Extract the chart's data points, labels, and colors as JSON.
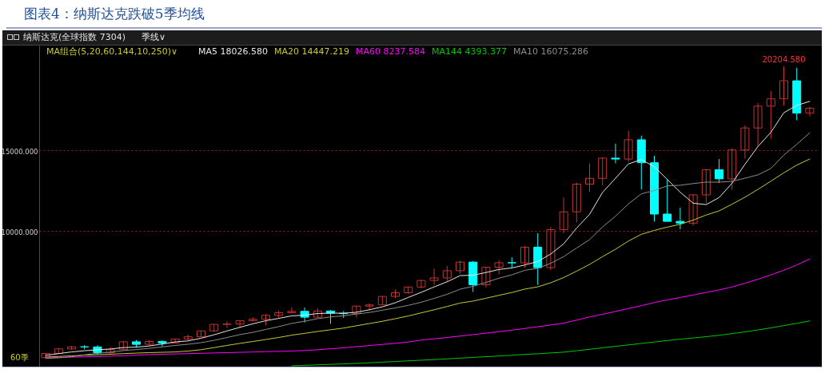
{
  "chart_data": {
    "type": "candlestick",
    "title": "图表4：纳斯达克跌破5季均线",
    "legend_title": "MA组合(5,20,60,144,10,250)∨",
    "categories": [
      null,
      null,
      null,
      null,
      null,
      null,
      null,
      null,
      null,
      null,
      null,
      null,
      null,
      null,
      null,
      null,
      null,
      null,
      null,
      null,
      null,
      null,
      null,
      null,
      null,
      null,
      null,
      null,
      null,
      null,
      null,
      null,
      null,
      null,
      null,
      null,
      null,
      null,
      null,
      null,
      null,
      null,
      null,
      null,
      null,
      null,
      null,
      null,
      null,
      null,
      null,
      null,
      null,
      null,
      null,
      null,
      null,
      null,
      null,
      null
    ],
    "ohlc": [
      [
        2109,
        2389,
        2061,
        2369
      ],
      [
        2369,
        2676,
        2344,
        2653
      ],
      [
        2653,
        2840,
        2603,
        2781
      ],
      [
        2781,
        2888,
        2621,
        2774
      ],
      [
        2774,
        2887,
        2299,
        2415
      ],
      [
        2415,
        2753,
        2335,
        2605
      ],
      [
        2605,
        3134,
        2602,
        3092
      ],
      [
        3092,
        3196,
        2726,
        2935
      ],
      [
        2935,
        3196,
        2810,
        3116
      ],
      [
        3116,
        3183,
        2810,
        3020
      ],
      [
        3020,
        3270,
        2999,
        3268
      ],
      [
        3268,
        3533,
        3154,
        3403
      ],
      [
        3403,
        3800,
        3370,
        3771
      ],
      [
        3771,
        4177,
        3703,
        4177
      ],
      [
        4177,
        4372,
        3946,
        4199
      ],
      [
        4199,
        4409,
        3947,
        4408
      ],
      [
        4408,
        4611,
        4354,
        4493
      ],
      [
        4493,
        4814,
        4117,
        4736
      ],
      [
        4736,
        5043,
        4560,
        4901
      ],
      [
        4901,
        5232,
        4855,
        4987
      ],
      [
        4987,
        5232,
        4292,
        4620
      ],
      [
        4620,
        5176,
        4567,
        5007
      ],
      [
        5007,
        5070,
        4210,
        4870
      ],
      [
        4870,
        5000,
        4574,
        4843
      ],
      [
        4843,
        5343,
        4594,
        5312
      ],
      [
        5312,
        5487,
        5034,
        5383
      ],
      [
        5383,
        5929,
        5371,
        5912
      ],
      [
        5912,
        6341,
        5805,
        6140
      ],
      [
        6140,
        6532,
        6081,
        6496
      ],
      [
        6496,
        6945,
        6414,
        6903
      ],
      [
        6903,
        7637,
        6630,
        7063
      ],
      [
        7063,
        7807,
        6805,
        7510
      ],
      [
        7510,
        8133,
        7323,
        8046
      ],
      [
        8046,
        8107,
        6190,
        6635
      ],
      [
        6635,
        7740,
        6457,
        7729
      ],
      [
        7729,
        8176,
        7292,
        8006
      ],
      [
        8006,
        8339,
        7662,
        7999
      ],
      [
        7999,
        9052,
        7700,
        8973
      ],
      [
        8973,
        9838,
        6631,
        7700
      ],
      [
        7700,
        10221,
        7550,
        10059
      ],
      [
        10059,
        12074,
        9838,
        11168
      ],
      [
        11168,
        12973,
        10519,
        12888
      ],
      [
        12888,
        14175,
        12397,
        13247
      ],
      [
        13247,
        14572,
        12806,
        14504
      ],
      [
        14504,
        15403,
        14181,
        14448
      ],
      [
        14448,
        16212,
        14287,
        15645
      ],
      [
        15645,
        15901,
        12555,
        14221
      ],
      [
        14221,
        14647,
        10565,
        11029
      ],
      [
        11029,
        13181,
        10565,
        10576
      ],
      [
        10576,
        11432,
        10089,
        10466
      ],
      [
        10466,
        12270,
        10305,
        12222
      ],
      [
        12222,
        13823,
        11695,
        13788
      ],
      [
        13788,
        14446,
        12963,
        13219
      ],
      [
        13219,
        15111,
        12544,
        15011
      ],
      [
        15011,
        16538,
        14477,
        16379
      ],
      [
        16379,
        17936,
        15223,
        17733
      ],
      [
        17733,
        18671,
        15708,
        18189
      ],
      [
        18189,
        20204.58,
        17755,
        19311
      ],
      [
        19311,
        20119,
        16854,
        17299
      ],
      [
        17299,
        17700,
        17100,
        17601
      ]
    ],
    "colors": [
      "#c83232",
      "#c83232",
      "#c83232",
      "#00ffff",
      "#00ffff",
      "#c83232",
      "#c83232",
      "#00ffff",
      "#c83232",
      "#00ffff",
      "#c83232",
      "#c83232",
      "#c83232",
      "#c83232",
      "#c83232",
      "#c83232",
      "#c83232",
      "#c83232",
      "#c83232",
      "#c83232",
      "#00ffff",
      "#c83232",
      "#00ffff",
      "#00ffff",
      "#c83232",
      "#c83232",
      "#c83232",
      "#c83232",
      "#c83232",
      "#c83232",
      "#c83232",
      "#c83232",
      "#c83232",
      "#00ffff",
      "#c83232",
      "#c83232",
      "#00ffff",
      "#c83232",
      "#00ffff",
      "#c83232",
      "#c83232",
      "#c83232",
      "#c83232",
      "#c83232",
      "#00ffff",
      "#c83232",
      "#00ffff",
      "#00ffff",
      "#00ffff",
      "#00ffff",
      "#c83232",
      "#c83232",
      "#00ffff",
      "#c83232",
      "#c83232",
      "#c83232",
      "#c83232",
      "#c83232",
      "#00ffff",
      "#c83232"
    ],
    "series": [
      {
        "name": "MA5 18026.580",
        "type": "line",
        "color": "#e6e6e6",
        "values": [
          2253,
          2360,
          2462,
          2537,
          2598,
          2646,
          2733,
          2764,
          2833,
          2954,
          3086,
          3148,
          3316,
          3528,
          3764,
          3992,
          4210,
          4403,
          4547,
          4705,
          4747,
          4850,
          4877,
          4865,
          4930,
          5083,
          5264,
          5518,
          5849,
          6167,
          6503,
          6822,
          7204,
          7231,
          7397,
          7585,
          7683,
          7868,
          8081,
          8547,
          9180,
          10158,
          11012,
          12373,
          13251,
          14146,
          14413,
          13969,
          13184,
          12387,
          11703,
          11616,
          12054,
          12941,
          14124,
          15226,
          16106,
          17325,
          17782,
          18030
        ]
      },
      {
        "name": "MA20 14447.219",
        "type": "line",
        "color": "#c8c832",
        "values": [
          2150,
          2180,
          2220,
          2260,
          2290,
          2320,
          2360,
          2390,
          2420,
          2440,
          2463,
          2519,
          2602,
          2733,
          2866,
          2995,
          3113,
          3237,
          3362,
          3506,
          3618,
          3736,
          3840,
          3944,
          4089,
          4227,
          4368,
          4529,
          4698,
          4892,
          5082,
          5287,
          5501,
          5623,
          5800,
          5980,
          6155,
          6367,
          6507,
          6761,
          7088,
          7482,
          7901,
          8384,
          8841,
          9354,
          9770,
          10014,
          10218,
          10396,
          10654,
          10968,
          11226,
          11645,
          12078,
          12564,
          13074,
          13591,
          14071,
          14450
        ]
      },
      {
        "name": "MA60 8237.584",
        "type": "line",
        "color": "#ff00ff",
        "values": [
          2100,
          2120,
          2140,
          2160,
          2180,
          2200,
          2230,
          2260,
          2300,
          2320,
          2340,
          2360,
          2380,
          2400,
          2420,
          2440,
          2460,
          2480,
          2500,
          2520,
          2550,
          2600,
          2660,
          2720,
          2790,
          2860,
          2930,
          3000,
          3080,
          3200,
          3280,
          3360,
          3450,
          3540,
          3630,
          3720,
          3820,
          3920,
          4030,
          4140,
          4250,
          4440,
          4640,
          4800,
          4980,
          5160,
          5340,
          5530,
          5700,
          5850,
          6000,
          6160,
          6320,
          6500,
          6730,
          6980,
          7250,
          7540,
          7870,
          8240
        ]
      },
      {
        "name": "MA144 4393.377",
        "type": "line",
        "color": "#00c800",
        "values": [
          null,
          null,
          null,
          null,
          null,
          null,
          null,
          null,
          null,
          null,
          null,
          null,
          null,
          null,
          null,
          null,
          null,
          null,
          null,
          1600,
          1630,
          1660,
          1690,
          1720,
          1750,
          1790,
          1830,
          1870,
          1910,
          1950,
          1990,
          2030,
          2080,
          2120,
          2170,
          2210,
          2260,
          2310,
          2350,
          2400,
          2450,
          2540,
          2630,
          2720,
          2810,
          2900,
          2990,
          3080,
          3170,
          3260,
          3330,
          3410,
          3500,
          3600,
          3710,
          3830,
          3960,
          4100,
          4240,
          4390
        ]
      },
      {
        "name": "MA10 16075.286",
        "type": "line",
        "color": "#8c8c8c",
        "values": [
          2059,
          2096,
          2164,
          2284,
          2373,
          2450,
          2547,
          2613,
          2685,
          2776,
          2866,
          2941,
          3040,
          3181,
          3359,
          3539,
          3679,
          3860,
          4038,
          4235,
          4370,
          4530,
          4640,
          4706,
          4818,
          4915,
          5057,
          5198,
          5357,
          5549,
          5793,
          6043,
          6361,
          6540,
          6782,
          7044,
          7253,
          7536,
          7656,
          7972,
          8383,
          8921,
          9440,
          10227,
          10899,
          11663,
          12286,
          12491,
          12779,
          12819,
          12925,
          13015,
          13012,
          13063,
          13256,
          13465,
          13861,
          14690,
          15362,
          16080
        ]
      }
    ],
    "ylim": [
      1550,
      21500
    ],
    "yticks": [
      {
        "value": 10000,
        "label": "10000.000"
      },
      {
        "value": 15000,
        "label": "15000.000"
      }
    ],
    "grid": "y",
    "tick_labels": "y",
    "annotations": [
      "纳斯达克(全球指数 7304)",
      "季线∨",
      "60季",
      {
        "text": "20204.580",
        "y": 20204.58
      }
    ]
  }
}
